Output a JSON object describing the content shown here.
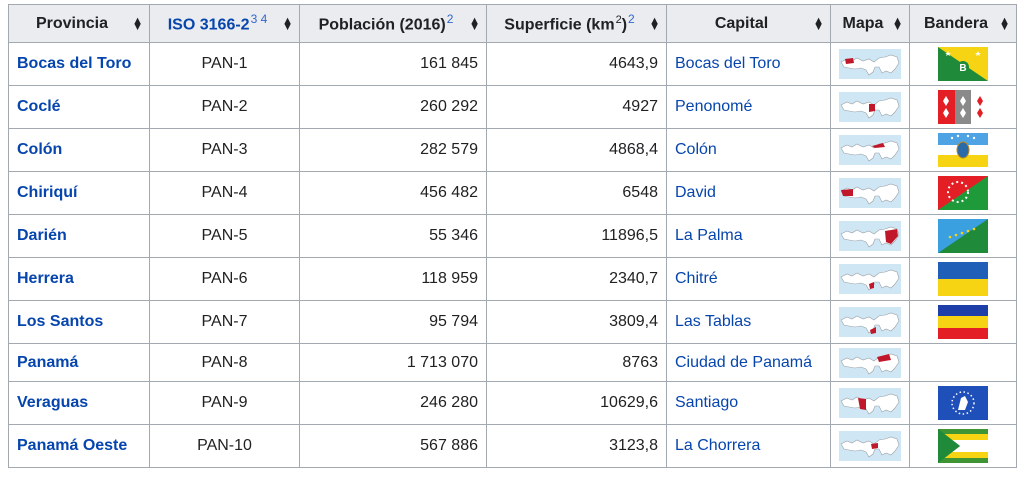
{
  "headers": {
    "provincia": "Provincia",
    "iso": "ISO 3166-2",
    "iso_refs": "3 4",
    "poblacion": "Población (2016)",
    "poblacion_ref": "2",
    "superficie_pre": "Superficie (km",
    "superficie_sup": "2",
    "superficie_post": ")",
    "superficie_ref": "2",
    "capital": "Capital",
    "mapa": "Mapa",
    "bandera": "Bandera"
  },
  "rows": [
    {
      "provincia": "Bocas del Toro",
      "iso": "PAN-1",
      "poblacion": "161 845",
      "superficie": "4643,9",
      "capital": "Bocas del Toro",
      "map": "bocas-del-toro-map",
      "flag": "bocas-del-toro-flag"
    },
    {
      "provincia": "Coclé",
      "iso": "PAN-2",
      "poblacion": "260 292",
      "superficie": "4927",
      "capital": "Penonomé",
      "map": "cocle-map",
      "flag": "cocle-flag"
    },
    {
      "provincia": "Colón",
      "iso": "PAN-3",
      "poblacion": "282 579",
      "superficie": "4868,4",
      "capital": "Colón",
      "map": "colon-map",
      "flag": "colon-flag"
    },
    {
      "provincia": "Chiriquí",
      "iso": "PAN-4",
      "poblacion": "456 482",
      "superficie": "6548",
      "capital": "David",
      "map": "chiriqui-map",
      "flag": "chiriqui-flag"
    },
    {
      "provincia": "Darién",
      "iso": "PAN-5",
      "poblacion": "55 346",
      "superficie": "11896,5",
      "capital": "La Palma",
      "map": "darien-map",
      "flag": "darien-flag"
    },
    {
      "provincia": "Herrera",
      "iso": "PAN-6",
      "poblacion": "118 959",
      "superficie": "2340,7",
      "capital": "Chitré",
      "map": "herrera-map",
      "flag": "herrera-flag"
    },
    {
      "provincia": "Los Santos",
      "iso": "PAN-7",
      "poblacion": "95 794",
      "superficie": "3809,4",
      "capital": "Las Tablas",
      "map": "los-santos-map",
      "flag": "los-santos-flag"
    },
    {
      "provincia": "Panamá",
      "iso": "PAN-8",
      "poblacion": "1 713 070",
      "superficie": "8763",
      "capital": "Ciudad de Panamá",
      "map": "panama-map",
      "flag": ""
    },
    {
      "provincia": "Veraguas",
      "iso": "PAN-9",
      "poblacion": "246 280",
      "superficie": "10629,6",
      "capital": "Santiago",
      "map": "veraguas-map",
      "flag": "veraguas-flag"
    },
    {
      "provincia": "Panamá Oeste",
      "iso": "PAN-10",
      "poblacion": "567 886",
      "superficie": "3123,8",
      "capital": "La Chorrera",
      "map": "panama-oeste-map",
      "flag": "panama-oeste-flag"
    }
  ],
  "flag_letter_bocas": "B",
  "colors": {
    "link": "#0645ad",
    "header_bg": "#eaecf0",
    "border": "#a2a9b1",
    "map_sea": "#cfe7f5",
    "map_highlight": "#c0182a"
  }
}
